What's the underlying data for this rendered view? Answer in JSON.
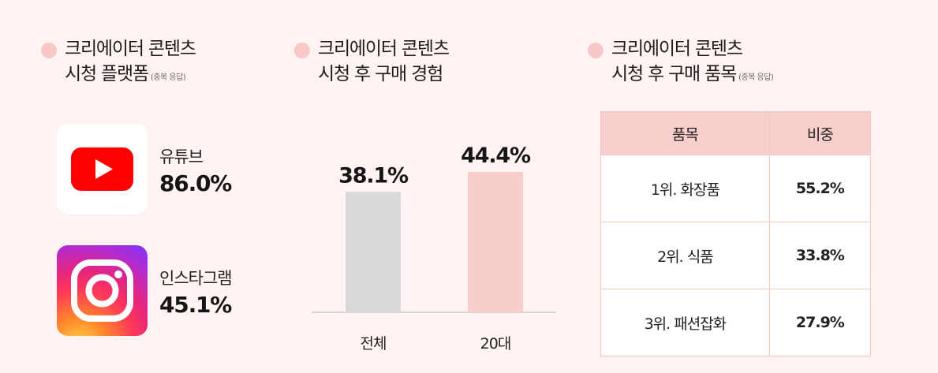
{
  "platforms": {
    "title_line1": "크리에이터 콘텐츠",
    "title_line2": "시청 플랫폼",
    "note": "(중복 응답)",
    "items": [
      {
        "name": "유튜브",
        "value": "86.0%",
        "icon": "youtube-icon"
      },
      {
        "name": "인스타그램",
        "value": "45.1%",
        "icon": "instagram-icon"
      }
    ]
  },
  "purchase": {
    "title_line1": "크리에이터 콘텐츠",
    "title_line2": "시청 후 구매 경험"
  },
  "chart_data": {
    "type": "bar",
    "categories": [
      "전체",
      "20대"
    ],
    "values": [
      38.1,
      44.4
    ],
    "value_labels": [
      "38.1%",
      "44.4%"
    ],
    "colors": [
      "#d9d9d9",
      "#f7cecb"
    ],
    "ylim": [
      0,
      70
    ],
    "grid": false,
    "legend": "none"
  },
  "items": {
    "title_line1": "크리에이터 콘텐츠",
    "title_line2": "시청 후 구매 품목",
    "note": "(중복 응답)",
    "headers": [
      "품목",
      "비중"
    ],
    "rows": [
      {
        "item": "1위. 화장품",
        "share": "55.2%"
      },
      {
        "item": "2위. 식품",
        "share": "33.8%"
      },
      {
        "item": "3위. 패션잡화",
        "share": "27.9%"
      }
    ]
  },
  "colors": {
    "background": "#fff4f3",
    "accent_pink": "#f7cecb",
    "neutral_bar": "#d9d9d9",
    "youtube_red": "#ff0000"
  }
}
